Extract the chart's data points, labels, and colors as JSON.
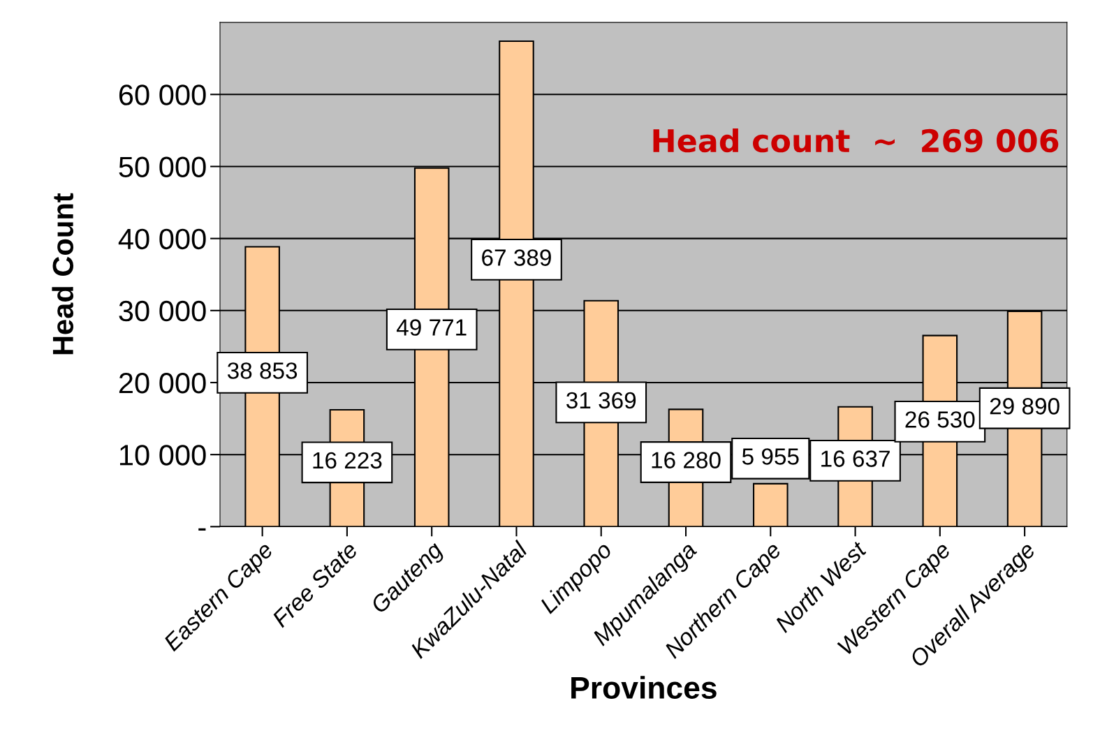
{
  "chart_data": {
    "type": "bar",
    "xlabel": "Provinces",
    "ylabel": "Head Count",
    "categories": [
      "Eastern Cape",
      "Free State",
      "Gauteng",
      "KwaZulu-Natal",
      "Limpopo",
      "Mpumalanga",
      "Northern Cape",
      "North West",
      "Western Cape",
      "Overall Average"
    ],
    "values": [
      38853,
      16223,
      49771,
      67389,
      31369,
      16280,
      5955,
      16637,
      26530,
      29890
    ],
    "value_labels": [
      "38 853",
      "16 223",
      "49 771",
      "67 389",
      "31 369",
      "16 280",
      "5 955",
      "16 637",
      "26 530",
      "29 890"
    ],
    "color": "#ffcc99",
    "ylim": [
      0,
      70000
    ],
    "yticks": [
      {
        "value": 0,
        "label": "-"
      },
      {
        "value": 10000,
        "label": "10 000"
      },
      {
        "value": 20000,
        "label": "20 000"
      },
      {
        "value": 30000,
        "label": "30 000"
      },
      {
        "value": 40000,
        "label": "40 000"
      },
      {
        "value": 50000,
        "label": "50 000"
      },
      {
        "value": 60000,
        "label": "60 000"
      }
    ],
    "grid": "y",
    "annotations": [
      "Head count  ~  269 006"
    ]
  }
}
